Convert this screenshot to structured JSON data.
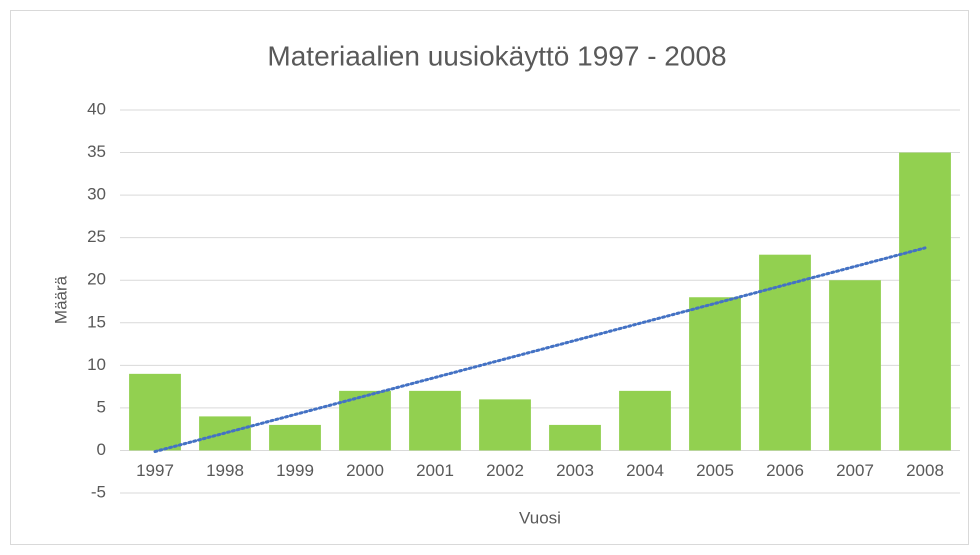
{
  "chart_data": {
    "type": "bar",
    "title": "Materiaalien uusiokäyttö 1997 - 2008",
    "x_label": "Vuosi",
    "y_label": "Määrä",
    "categories": [
      "1997",
      "1998",
      "1999",
      "2000",
      "2001",
      "2002",
      "2003",
      "2004",
      "2005",
      "2006",
      "2007",
      "2008"
    ],
    "values": [
      9,
      4,
      3,
      7,
      7,
      6,
      3,
      7,
      18,
      23,
      20,
      35
    ],
    "color": "#92d050",
    "ylim": [
      -5,
      40
    ],
    "yticks": [
      -5,
      0,
      5,
      10,
      15,
      20,
      25,
      30,
      35,
      40
    ],
    "grid": true,
    "trendline": "linear",
    "trendline_color": "#4472c4"
  }
}
